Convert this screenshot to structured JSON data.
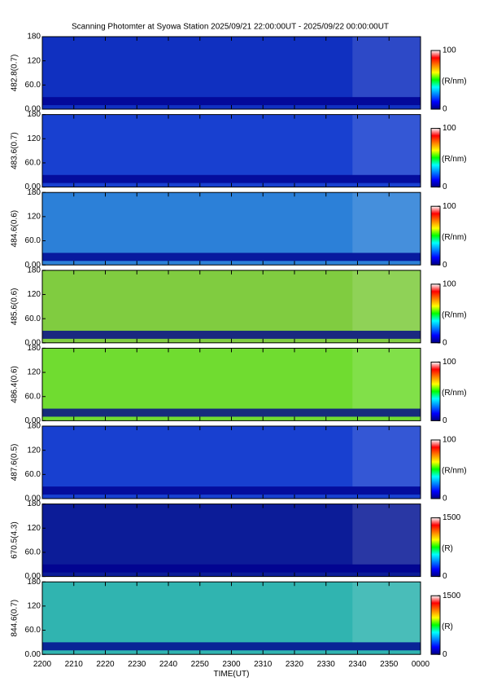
{
  "title": "Scanning Photomter at Syowa Station 2025/09/21 22:00:00UT - 2025/09/22 00:00:00UT",
  "colormap": [
    "#000080",
    "#0000ff",
    "#0080ff",
    "#00ffff",
    "#00ff00",
    "#ffff00",
    "#ff8000",
    "#ff0000",
    "#ffffff"
  ],
  "chart_data": [
    {
      "type": "heatmap",
      "ylabel": "482.8(0.7)",
      "ylim": [
        0,
        180
      ],
      "yticks": [
        {
          "value": 0,
          "label": "0.00"
        },
        {
          "value": 60,
          "label": "60.0"
        },
        120,
        180
      ],
      "background": "#1030c0",
      "clim": [
        0,
        100
      ],
      "cticks": [
        0,
        100
      ],
      "clabel": "(R/nm)"
    },
    {
      "type": "heatmap",
      "ylabel": "483.6(0.7)",
      "ylim": [
        0,
        180
      ],
      "yticks": [
        {
          "value": 0,
          "label": "0.00"
        },
        {
          "value": 60,
          "label": "60.0"
        },
        120,
        180
      ],
      "background": "#1840d0",
      "clim": [
        0,
        100
      ],
      "cticks": [
        0,
        100
      ],
      "clabel": "(R/nm)"
    },
    {
      "type": "heatmap",
      "ylabel": "484.6(0.6)",
      "ylim": [
        0,
        180
      ],
      "yticks": [
        {
          "value": 0,
          "label": "0.00"
        },
        {
          "value": 60,
          "label": "60.0"
        },
        120,
        180
      ],
      "background": "#2c80d8",
      "clim": [
        0,
        100
      ],
      "cticks": [
        0,
        100
      ],
      "clabel": "(R/nm)"
    },
    {
      "type": "heatmap",
      "ylabel": "485.6(0.6)",
      "ylim": [
        0,
        180
      ],
      "yticks": [
        {
          "value": 0,
          "label": "0.00"
        },
        {
          "value": 60,
          "label": "60.0"
        },
        120,
        180
      ],
      "background": "#80cc40",
      "clim": [
        0,
        100
      ],
      "cticks": [
        0,
        100
      ],
      "clabel": "(R/nm)"
    },
    {
      "type": "heatmap",
      "ylabel": "486.4(0.6)",
      "ylim": [
        0,
        180
      ],
      "yticks": [
        {
          "value": 0,
          "label": "0.00"
        },
        {
          "value": 60,
          "label": "60.0"
        },
        120,
        180
      ],
      "background": "#70dc30",
      "clim": [
        0,
        100
      ],
      "cticks": [
        0,
        100
      ],
      "clabel": "(R/nm)"
    },
    {
      "type": "heatmap",
      "ylabel": "487.6(0.5)",
      "ylim": [
        0,
        180
      ],
      "yticks": [
        {
          "value": 0,
          "label": "0.00"
        },
        {
          "value": 60,
          "label": "60.0"
        },
        120,
        180
      ],
      "background": "#1840d0",
      "clim": [
        0,
        100
      ],
      "cticks": [
        0,
        100
      ],
      "clabel": "(R/nm)"
    },
    {
      "type": "heatmap",
      "ylabel": "670.5(4.3)",
      "ylim": [
        0,
        180
      ],
      "yticks": [
        {
          "value": 0,
          "label": "0.00"
        },
        {
          "value": 60,
          "label": "60.0"
        },
        120,
        180
      ],
      "background": "#0c1c98",
      "clim": [
        0,
        1500
      ],
      "cticks": [
        0,
        1500
      ],
      "clabel": "(R)"
    },
    {
      "type": "heatmap",
      "ylabel": "844.6(0.7)",
      "ylim": [
        0,
        180
      ],
      "yticks": [
        {
          "value": 0,
          "label": "0.00"
        },
        {
          "value": 60,
          "label": "60.0"
        },
        120,
        180
      ],
      "background": "#30b4b0",
      "clim": [
        0,
        1500
      ],
      "cticks": [
        0,
        1500
      ],
      "clabel": "(R)",
      "xlabel": "TIME(UT)",
      "xlim": [
        0,
        120
      ],
      "xticks": [
        {
          "value": 0,
          "label": "2200"
        },
        {
          "value": 10,
          "label": "2210"
        },
        {
          "value": 20,
          "label": "2220"
        },
        {
          "value": 30,
          "label": "2230"
        },
        {
          "value": 40,
          "label": "2240"
        },
        {
          "value": 50,
          "label": "2250"
        },
        {
          "value": 60,
          "label": "2300"
        },
        {
          "value": 70,
          "label": "2310"
        },
        {
          "value": 80,
          "label": "2320"
        },
        {
          "value": 90,
          "label": "2330"
        },
        {
          "value": 100,
          "label": "2340"
        },
        {
          "value": 110,
          "label": "2350"
        },
        {
          "value": 120,
          "label": "0000"
        }
      ]
    }
  ]
}
